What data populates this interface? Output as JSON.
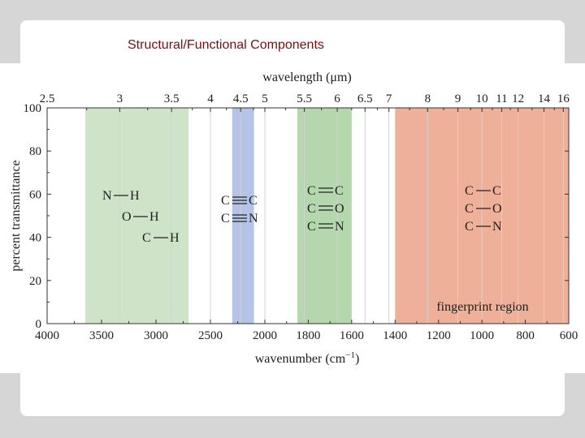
{
  "slide": {
    "title": "Structural/Functional Components"
  },
  "chart_data": {
    "type": "diagram",
    "top_axis": {
      "label": "wavelength (μm)",
      "ticks": [
        "2.5",
        "3",
        "3.5",
        "4",
        "4.5",
        "5",
        "5.5",
        "6",
        "6.5",
        "7",
        "8",
        "9",
        "10",
        "11",
        "12",
        "14",
        "16"
      ],
      "tick_values": [
        2.5,
        3,
        3.5,
        4,
        4.5,
        5,
        5.5,
        6,
        6.5,
        7,
        8,
        9,
        10,
        11,
        12,
        14,
        16
      ]
    },
    "bottom_axis": {
      "label": "wavenumber (cm",
      "label_sup": "−1",
      "label_close": ")",
      "ticks": [
        "4000",
        "3500",
        "3000",
        "2500",
        "2000",
        "1800",
        "1600",
        "1400",
        "1200",
        "1000",
        "800",
        "600"
      ],
      "tick_values": [
        4000,
        3500,
        3000,
        2500,
        2000,
        1800,
        1600,
        1400,
        1200,
        1000,
        800,
        600
      ]
    },
    "y_axis": {
      "label": "percent transmittance",
      "ticks": [
        "0",
        "20",
        "40",
        "60",
        "80",
        "100"
      ],
      "ylim": [
        0,
        100
      ]
    },
    "bands": [
      {
        "name": "single-bonds-to-hydrogen",
        "from_cm": 3650,
        "to_cm": 2700,
        "color": "#cfe3c8",
        "labels": [
          "N—H",
          "O—H",
          "C—H"
        ]
      },
      {
        "name": "triple-bonds",
        "from_cm": 2300,
        "to_cm": 2100,
        "color": "#b5c4e6",
        "labels": [
          "C≡C",
          "C≡N"
        ]
      },
      {
        "name": "double-bonds",
        "from_cm": 1850,
        "to_cm": 1600,
        "color": "#b5d7ae",
        "labels": [
          "C═C",
          "C═O",
          "C═N"
        ]
      },
      {
        "name": "fingerprint-region",
        "from_cm": 1400,
        "to_cm": 600,
        "color": "#efb099",
        "labels": [
          "C—C",
          "C—O",
          "C—N"
        ],
        "caption": "fingerprint region"
      }
    ],
    "grid": true
  }
}
